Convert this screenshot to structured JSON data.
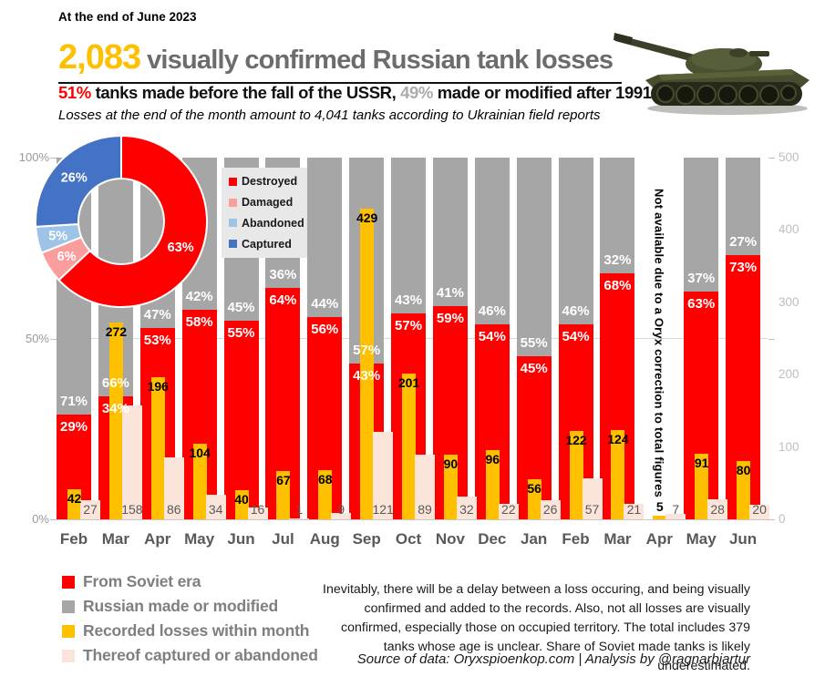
{
  "header": {
    "date_note": "At the end of June 2023",
    "title_number": "2,083",
    "title_rest": "visually confirmed Russian tank losses",
    "subtitle_soviet_pct": "51%",
    "subtitle_mid": " tanks made before the fall of the USSR, ",
    "subtitle_modern_pct": "49%",
    "subtitle_end": " made or modified after 1991",
    "italic_note": "Losses at the end of the month amount to 4,041 tanks according to Ukrainian field reports"
  },
  "colors": {
    "soviet": "#FF0000",
    "russian": "#A6A6A6",
    "recorded": "#FFC000",
    "captured_abandoned": "#FBE5DB",
    "donut_destroyed": "#FF0000",
    "donut_damaged": "#FC9D9D",
    "donut_abandoned": "#9DC3E6",
    "donut_captured": "#4472C4",
    "title_accent": "#FFC000"
  },
  "chart_data": {
    "type": "bar",
    "title": "2,083 visually confirmed Russian tank losses",
    "x_categories": [
      "Feb",
      "Mar",
      "Apr",
      "May",
      "Jun",
      "Jul",
      "Aug",
      "Sep",
      "Oct",
      "Nov",
      "Dec",
      "Jan",
      "Feb",
      "Mar",
      "Apr",
      "May",
      "Jun"
    ],
    "left_axis": {
      "ticks": [
        "0%",
        "50%",
        "100%"
      ],
      "range_pct": [
        0,
        100
      ]
    },
    "right_axis": {
      "ticks": [
        0,
        100,
        200,
        300,
        400,
        500
      ],
      "range": [
        0,
        500
      ]
    },
    "series": [
      {
        "name": "From Soviet era",
        "unit": "% of losses",
        "values": [
          29,
          34,
          53,
          58,
          55,
          64,
          56,
          43,
          57,
          59,
          54,
          45,
          54,
          68,
          null,
          63,
          73
        ]
      },
      {
        "name": "Russian made or modified",
        "unit": "% of losses",
        "values": [
          71,
          66,
          47,
          42,
          45,
          36,
          44,
          57,
          43,
          41,
          46,
          55,
          46,
          32,
          null,
          37,
          27
        ]
      },
      {
        "name": "Recorded losses within month",
        "unit": "tanks",
        "values": [
          42,
          272,
          196,
          104,
          40,
          67,
          68,
          429,
          201,
          90,
          96,
          56,
          122,
          124,
          5,
          91,
          80
        ]
      },
      {
        "name": "Thereof captured or abandoned",
        "unit": "tanks",
        "values": [
          27,
          158,
          86,
          34,
          16,
          1,
          9,
          121,
          89,
          32,
          22,
          26,
          57,
          21,
          7,
          28,
          20
        ]
      }
    ],
    "missing_month": {
      "index": 14,
      "note": "Not available due to a Oryx correction to total figures"
    },
    "donut": {
      "type": "pie",
      "slices": [
        {
          "label": "Destroyed",
          "pct": 63
        },
        {
          "label": "Damaged",
          "pct": 6
        },
        {
          "label": "Abandoned",
          "pct": 5
        },
        {
          "label": "Captured",
          "pct": 26
        }
      ]
    }
  },
  "footer_legend": [
    {
      "label": "From Soviet era",
      "color_key": "soviet"
    },
    {
      "label": "Russian made or modified",
      "color_key": "russian"
    },
    {
      "label": "Recorded losses within month",
      "color_key": "recorded"
    },
    {
      "label": "Thereof captured or abandoned",
      "color_key": "captured_abandoned"
    }
  ],
  "note_paragraph": "Inevitably, there will be a delay between a loss occuring, and being visually confirmed and added to the records. Also, not all losses are visually confirmed, especially those on occupied territory. The total includes 379 tanks whose age is unclear. Share of Soviet made tanks is likely underestimated.",
  "source_line": "Source of data: Oryxspioenkop.com | Analysis by @ragnarbjartur"
}
